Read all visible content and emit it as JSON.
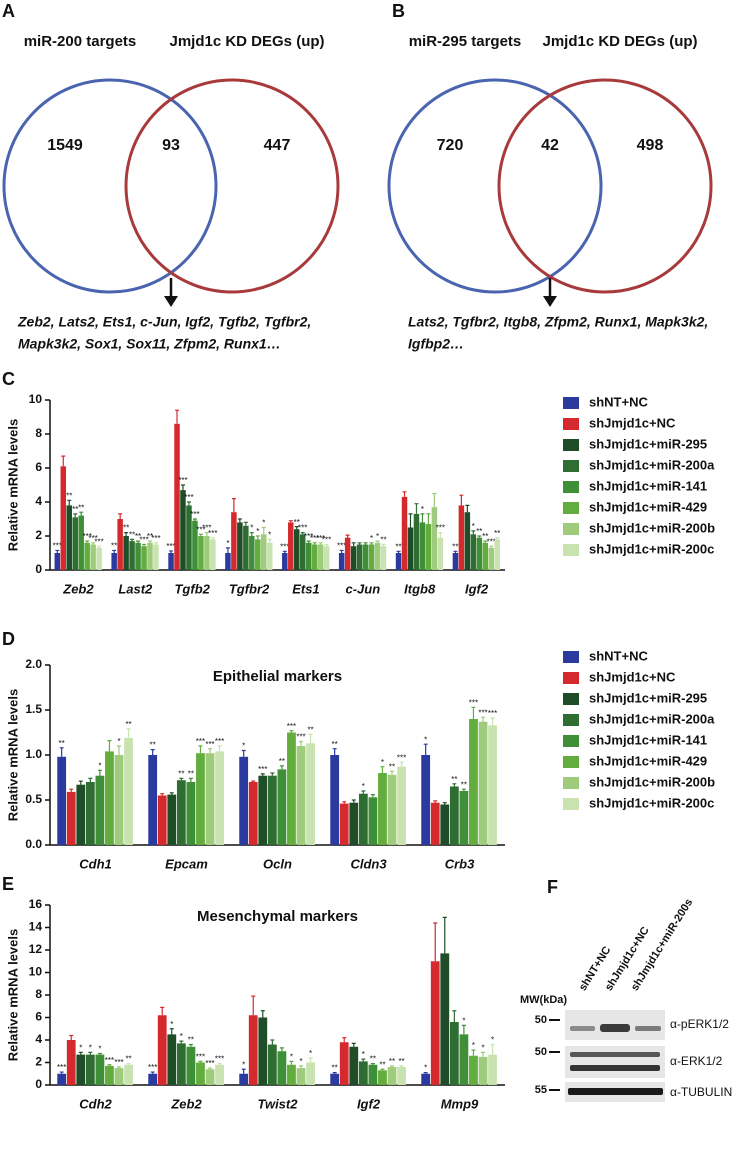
{
  "chart_data": [
    {
      "type": "venn",
      "panel": "A",
      "sets": [
        {
          "name": "miR-200 targets",
          "color": "#4a64b0"
        },
        {
          "name": "Jmjd1c KD DEGs (up)",
          "color": "#a83a3c"
        }
      ],
      "values": [
        1549,
        93,
        447
      ],
      "annotation_lines": [
        "Zeb2, Lats2, Ets1, c-Jun, Igf2, Tgfb2, Tgfbr2,",
        "Mapk3k2, Sox1, Sox11, Zfpm2, Runx1…"
      ]
    },
    {
      "type": "venn",
      "panel": "B",
      "sets": [
        {
          "name": "miR-295 targets",
          "color": "#4a64b0"
        },
        {
          "name": "Jmjd1c KD DEGs (up)",
          "color": "#a83a3c"
        }
      ],
      "values": [
        720,
        42,
        498
      ],
      "annotation_lines": [
        "Lats2, Tgfbr2, Itgb8, Zfpm2, Runx1, Mapk3k2,",
        "Igfbp2…"
      ]
    },
    {
      "type": "bar",
      "panel": "C",
      "ylabel": "Relative mRNA levels",
      "legend": "right",
      "categories": [
        "Zeb2",
        "Last2",
        "Tgfb2",
        "Tgfbr2",
        "Ets1",
        "c-Jun",
        "Itgb8",
        "Igf2"
      ],
      "ylim": [
        0,
        10
      ],
      "yticks": [
        0,
        2,
        4,
        6,
        8,
        10
      ],
      "series": [
        {
          "name": "shNT+NC",
          "color": "#2b3a9e",
          "values": [
            1,
            1,
            1,
            1,
            1,
            1,
            1,
            1
          ],
          "errors": [
            0.15,
            0.15,
            0.12,
            0.3,
            0.1,
            0.15,
            0.1,
            0.1
          ],
          "significance": [
            "***",
            "**",
            "***",
            "*",
            "***",
            "***",
            "**",
            "**"
          ]
        },
        {
          "name": "shJmjd1c+NC",
          "color": "#d42a2e",
          "values": [
            6.1,
            3.0,
            8.6,
            3.4,
            2.8,
            1.9,
            4.3,
            3.8
          ],
          "errors": [
            0.6,
            0.3,
            0.8,
            0.8,
            0.1,
            0.15,
            0.3,
            0.6
          ],
          "significance": [
            null,
            null,
            null,
            null,
            null,
            null,
            null,
            null
          ]
        },
        {
          "name": "shJmjd1c+miR-295",
          "color": "#1f4d27",
          "values": [
            3.8,
            2.0,
            4.7,
            2.8,
            2.4,
            1.4,
            2.5,
            3.4
          ],
          "errors": [
            0.3,
            0.2,
            0.3,
            0.2,
            0.15,
            0.2,
            0.8,
            0.4
          ],
          "significance": [
            "**",
            "**",
            "***",
            null,
            "**",
            null,
            null,
            null
          ]
        },
        {
          "name": "shJmjd1c+miR-200a",
          "color": "#2f6e33",
          "values": [
            3.1,
            1.7,
            3.8,
            2.6,
            2.1,
            1.5,
            3.3,
            2.1
          ],
          "errors": [
            0.2,
            0.1,
            0.2,
            0.2,
            0.1,
            0.1,
            0.6,
            0.2
          ],
          "significance": [
            "**",
            "**",
            "***",
            null,
            "***",
            null,
            null,
            "*"
          ]
        },
        {
          "name": "shJmjd1c+miR-141",
          "color": "#3f8e38",
          "values": [
            3.2,
            1.6,
            2.9,
            2.0,
            1.6,
            1.5,
            2.8,
            1.9
          ],
          "errors": [
            0.2,
            0.1,
            0.1,
            0.2,
            0.1,
            0.1,
            0.5,
            0.1
          ],
          "significance": [
            "**",
            "**",
            "***",
            "*",
            "***",
            null,
            "*",
            "**"
          ]
        },
        {
          "name": "shJmjd1c+miR-429",
          "color": "#62ad3e",
          "values": [
            1.6,
            1.4,
            2.0,
            1.8,
            1.5,
            1.5,
            2.7,
            1.6
          ],
          "errors": [
            0.1,
            0.1,
            0.1,
            0.2,
            0.1,
            0.1,
            0.6,
            0.1
          ],
          "significance": [
            "***",
            "***",
            "***",
            "*",
            "***",
            "*",
            null,
            "**"
          ]
        },
        {
          "name": "shJmjd1c+miR-200b",
          "color": "#9fcb7c",
          "values": [
            1.5,
            1.6,
            2.0,
            2.1,
            1.5,
            1.6,
            3.7,
            1.3
          ],
          "errors": [
            0.1,
            0.1,
            0.2,
            0.4,
            0.1,
            0.1,
            0.8,
            0.1
          ],
          "significance": [
            "***",
            "**",
            "***",
            "*",
            "***",
            "*",
            null,
            "***"
          ]
        },
        {
          "name": "shJmjd1c+miR-200c",
          "color": "#c8e3b0",
          "values": [
            1.3,
            1.5,
            1.8,
            1.6,
            1.4,
            1.4,
            1.9,
            1.8
          ],
          "errors": [
            0.1,
            0.1,
            0.1,
            0.2,
            0.1,
            0.1,
            0.3,
            0.1
          ],
          "significance": [
            "***",
            "***",
            "***",
            "*",
            "***",
            "**",
            "***",
            "**"
          ]
        }
      ]
    },
    {
      "type": "bar",
      "panel": "D",
      "title": "Epithelial markers",
      "ylabel": "Relative mRNA levels",
      "legend": "right",
      "categories": [
        "Cdh1",
        "Epcam",
        "Ocln",
        "Cldn3",
        "Crb3"
      ],
      "ylim": [
        0,
        2
      ],
      "yticks": [
        {
          "value": 0,
          "label": "0.0"
        },
        0.5,
        {
          "value": 1,
          "label": "1.0"
        },
        1.5,
        {
          "value": 2,
          "label": "2.0"
        }
      ],
      "series": [
        {
          "name": "shNT+NC",
          "color": "#2b3a9e",
          "values": [
            0.98,
            1.0,
            0.98,
            1.0,
            1.0
          ],
          "errors": [
            0.1,
            0.06,
            0.07,
            0.07,
            0.12
          ],
          "significance": [
            "**",
            "**",
            "*",
            "**",
            "*"
          ]
        },
        {
          "name": "shJmjd1c+NC",
          "color": "#d42a2e",
          "values": [
            0.59,
            0.55,
            0.7,
            0.46,
            0.47
          ],
          "errors": [
            0.03,
            0.02,
            0.01,
            0.02,
            0.02
          ],
          "significance": [
            null,
            null,
            null,
            null,
            null
          ]
        },
        {
          "name": "shJmjd1c+miR-295",
          "color": "#1f4d27",
          "values": [
            0.67,
            0.56,
            0.77,
            0.47,
            0.45
          ],
          "errors": [
            0.04,
            0.02,
            0.02,
            0.03,
            0.02
          ],
          "significance": [
            null,
            null,
            "***",
            null,
            null
          ]
        },
        {
          "name": "shJmjd1c+miR-200a",
          "color": "#2f6e33",
          "values": [
            0.7,
            0.72,
            0.77,
            0.57,
            0.65
          ],
          "errors": [
            0.04,
            0.02,
            0.03,
            0.03,
            0.03
          ],
          "significance": [
            null,
            "**",
            null,
            "*",
            "**"
          ]
        },
        {
          "name": "shJmjd1c+miR-141",
          "color": "#3f8e38",
          "values": [
            0.77,
            0.7,
            0.84,
            0.53,
            0.6
          ],
          "errors": [
            0.06,
            0.04,
            0.04,
            0.03,
            0.02
          ],
          "significance": [
            "*",
            "**",
            "**",
            null,
            "**"
          ]
        },
        {
          "name": "shJmjd1c+miR-429",
          "color": "#62ad3e",
          "values": [
            1.04,
            1.02,
            1.25,
            0.8,
            1.4
          ],
          "errors": [
            0.12,
            0.08,
            0.02,
            0.07,
            0.13
          ],
          "significance": [
            null,
            "***",
            "***",
            "*",
            "***"
          ]
        },
        {
          "name": "shJmjd1c+miR-200b",
          "color": "#9fcb7c",
          "values": [
            1.0,
            1.02,
            1.1,
            0.78,
            1.37
          ],
          "errors": [
            0.1,
            0.05,
            0.05,
            0.04,
            0.05
          ],
          "significance": [
            "*",
            "***",
            "***",
            "**",
            "***"
          ]
        },
        {
          "name": "shJmjd1c+miR-200c",
          "color": "#c8e3b0",
          "values": [
            1.19,
            1.04,
            1.13,
            0.87,
            1.33
          ],
          "errors": [
            0.1,
            0.06,
            0.1,
            0.05,
            0.08
          ],
          "significance": [
            "**",
            "***",
            "**",
            "***",
            "***"
          ]
        }
      ]
    },
    {
      "type": "bar",
      "panel": "E",
      "title": "Mesenchymal markers",
      "ylabel": "Relative mRNA levels",
      "categories": [
        "Cdh2",
        "Zeb2",
        "Twist2",
        "Igf2",
        "Mmp9"
      ],
      "ylim": [
        0,
        16
      ],
      "yticks": [
        0,
        2,
        4,
        6,
        8,
        10,
        12,
        14,
        16
      ],
      "series": [
        {
          "color": "#2b3a9e",
          "values": [
            1,
            1,
            1,
            1,
            1
          ],
          "errors": [
            0.15,
            0.15,
            0.4,
            0.1,
            0.1
          ],
          "significance": [
            "***",
            "***",
            "*",
            "**",
            "*"
          ]
        },
        {
          "color": "#d42a2e",
          "values": [
            4.0,
            6.2,
            6.2,
            3.8,
            11.0
          ],
          "errors": [
            0.4,
            0.7,
            1.7,
            0.4,
            3.4
          ],
          "significance": [
            null,
            null,
            null,
            null,
            null
          ]
        },
        {
          "color": "#1f4d27",
          "values": [
            2.7,
            4.5,
            6.0,
            3.4,
            11.7
          ],
          "errors": [
            0.2,
            0.5,
            0.6,
            0.3,
            3.2
          ],
          "significance": [
            "*",
            "*",
            null,
            null,
            null
          ]
        },
        {
          "color": "#2f6e33",
          "values": [
            2.7,
            3.7,
            3.6,
            2.1,
            5.6
          ],
          "errors": [
            0.2,
            0.2,
            0.4,
            0.2,
            1.0
          ],
          "significance": [
            "*",
            "*",
            null,
            "*",
            null
          ]
        },
        {
          "color": "#3f8e38",
          "values": [
            2.7,
            3.4,
            3.0,
            1.8,
            4.5
          ],
          "errors": [
            0.1,
            0.2,
            0.3,
            0.1,
            0.8
          ],
          "significance": [
            "*",
            "**",
            null,
            "**",
            "*"
          ]
        },
        {
          "color": "#62ad3e",
          "values": [
            1.7,
            2.0,
            1.8,
            1.3,
            2.6
          ],
          "errors": [
            0.1,
            0.1,
            0.3,
            0.1,
            0.5
          ],
          "significance": [
            "***",
            "***",
            "*",
            "**",
            "*"
          ]
        },
        {
          "color": "#9fcb7c",
          "values": [
            1.5,
            1.4,
            1.5,
            1.6,
            2.5
          ],
          "errors": [
            0.1,
            0.1,
            0.2,
            0.1,
            0.4
          ],
          "significance": [
            "***",
            "***",
            "*",
            "**",
            "*"
          ]
        },
        {
          "color": "#c8e3b0",
          "values": [
            1.8,
            1.8,
            2.0,
            1.6,
            2.7
          ],
          "errors": [
            0.1,
            0.1,
            0.4,
            0.1,
            0.9
          ],
          "significance": [
            "**",
            "***",
            "*",
            "**",
            "*"
          ]
        }
      ]
    }
  ],
  "blot": {
    "panel": "F",
    "lanes": [
      "shNT+NC",
      "shJmjd1c+NC",
      "shJmjd1c+miR-200s"
    ],
    "mw_label": "MW(kDa)",
    "markers": [
      "50",
      "50",
      "55"
    ],
    "bands": [
      "α-pERK1/2",
      "α-ERK1/2",
      "α-TUBULIN"
    ]
  }
}
